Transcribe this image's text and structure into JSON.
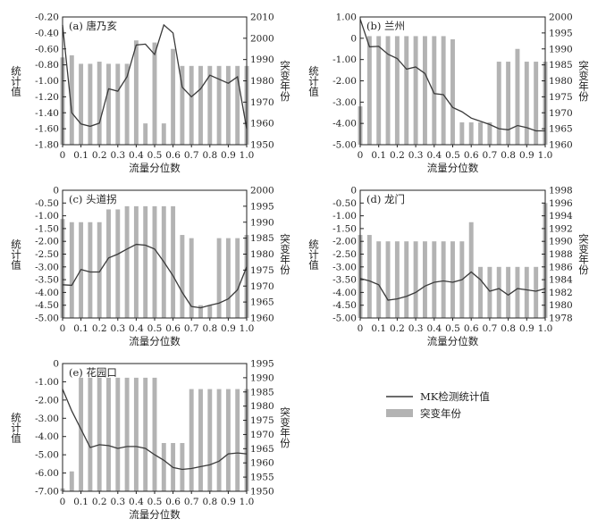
{
  "legend": {
    "line_label": "MK检测统计值",
    "bar_label": "突变年份"
  },
  "colors": {
    "bar": "#b3b3b3",
    "line": "#3a3a3a",
    "axis": "#222222"
  },
  "chart_data": [
    {
      "type": "bar+line",
      "title": "(a) 唐乃亥",
      "xlabel": "流量分位数",
      "ylabel": "统计值",
      "ylabel_right": "突变年份",
      "x_ticks": [
        "0",
        "0.1",
        "0.2",
        "0.3",
        "0.4",
        "0.5",
        "0.6",
        "0.7",
        "0.8",
        "0.9",
        "1.0"
      ],
      "y_ticks": [
        "-0.20",
        "-0.40",
        "-0.60",
        "-0.80",
        "-1.00",
        "-1.20",
        "-1.40",
        "-1.60",
        "-1.80"
      ],
      "y2_ticks": [
        "2010",
        "2000",
        "1990",
        "1980",
        "1970",
        "1960",
        "1950"
      ],
      "ylim": [
        -1.8,
        -0.2
      ],
      "y2lim": [
        1950,
        2010
      ],
      "x": [
        0,
        0.05,
        0.1,
        0.15,
        0.2,
        0.25,
        0.3,
        0.35,
        0.4,
        0.45,
        0.5,
        0.55,
        0.6,
        0.65,
        0.7,
        0.75,
        0.8,
        0.85,
        0.9,
        0.95,
        1.0
      ],
      "line_values": [
        -0.3,
        -1.4,
        -1.54,
        -1.57,
        -1.53,
        -1.1,
        -1.13,
        -0.95,
        -0.55,
        -0.54,
        -0.67,
        -0.3,
        -0.4,
        -1.08,
        -1.2,
        -1.1,
        -0.93,
        -0.98,
        -1.03,
        -0.95,
        -1.6
      ],
      "bar_values": [
        1991,
        1992,
        1988,
        1988,
        1989,
        1988,
        1988,
        1988,
        1999,
        1960,
        1998,
        1960,
        1995,
        1987,
        1987,
        1987,
        1987,
        1987,
        1987,
        1987,
        1987
      ]
    },
    {
      "type": "bar+line",
      "title": "(b) 兰州",
      "xlabel": "流量分位数",
      "ylabel": "统计值",
      "ylabel_right": "突变年份",
      "x_ticks": [
        "0",
        "0.1",
        "0.2",
        "0.3",
        "0.4",
        "0.5",
        "0.6",
        "0.7",
        "0.8",
        "0.9",
        "1.0"
      ],
      "y_ticks": [
        "1.00",
        "0",
        "-1.00",
        "-2.00",
        "-3.00",
        "-4.00",
        "-5.00"
      ],
      "y2_ticks": [
        "2000",
        "1995",
        "1990",
        "1985",
        "1980",
        "1975",
        "1970",
        "1965",
        "1960"
      ],
      "ylim": [
        -5.0,
        1.0
      ],
      "y2lim": [
        1960,
        2000
      ],
      "x": [
        0,
        0.05,
        0.1,
        0.15,
        0.2,
        0.25,
        0.3,
        0.35,
        0.4,
        0.45,
        0.5,
        0.55,
        0.6,
        0.65,
        0.7,
        0.75,
        0.8,
        0.85,
        0.9,
        0.95,
        1.0
      ],
      "line_values": [
        0.9,
        -0.4,
        -0.38,
        -0.75,
        -0.95,
        -1.45,
        -1.35,
        -1.65,
        -2.6,
        -2.65,
        -3.25,
        -3.45,
        -3.75,
        -3.9,
        -4.05,
        -4.25,
        -4.3,
        -4.1,
        -4.2,
        -4.35,
        -4.35
      ],
      "bar_values": [
        1972,
        1994,
        1994,
        1994,
        1994,
        1994,
        1994,
        1994,
        1994,
        1994,
        1993,
        1967,
        1967,
        1967,
        1967,
        1986,
        1986,
        1990,
        1986,
        1986,
        1986
      ]
    },
    {
      "type": "bar+line",
      "title": "(c) 头道拐",
      "xlabel": "流量分位数",
      "ylabel": "统计值",
      "ylabel_right": "突变年份",
      "x_ticks": [
        "0",
        "0.1",
        "0.2",
        "0.3",
        "0.4",
        "0.5",
        "0.6",
        "0.7",
        "0.8",
        "0.9",
        "1.0"
      ],
      "y_ticks": [
        "0",
        "-0.50",
        "-1.00",
        "-1.50",
        "-2.00",
        "-2.50",
        "-3.00",
        "-3.50",
        "-4.00",
        "-4.50",
        "-5.00"
      ],
      "y2_ticks": [
        "2000",
        "1995",
        "1990",
        "1985",
        "1980",
        "1975",
        "1970",
        "1965",
        "1960"
      ],
      "ylim": [
        -5.0,
        0
      ],
      "y2lim": [
        1960,
        2000
      ],
      "x": [
        0,
        0.05,
        0.1,
        0.15,
        0.2,
        0.25,
        0.3,
        0.35,
        0.4,
        0.45,
        0.5,
        0.55,
        0.6,
        0.65,
        0.7,
        0.75,
        0.8,
        0.85,
        0.9,
        0.95,
        1.0
      ],
      "line_values": [
        -3.7,
        -3.72,
        -3.1,
        -3.2,
        -3.2,
        -2.65,
        -2.5,
        -2.3,
        -2.12,
        -2.15,
        -2.3,
        -2.8,
        -3.35,
        -4.0,
        -4.55,
        -4.6,
        -4.5,
        -4.42,
        -4.25,
        -3.9,
        -3.0
      ],
      "bar_values": [
        1991,
        1990,
        1990,
        1990,
        1990,
        1994,
        1994,
        1995,
        1995,
        1995,
        1995,
        1995,
        1995,
        1986,
        1985,
        1964,
        1964,
        1985,
        1985,
        1985,
        1986
      ]
    },
    {
      "type": "bar+line",
      "title": "(d) 龙门",
      "xlabel": "流量分位数",
      "ylabel": "统计值",
      "ylabel_right": "突变年份",
      "x_ticks": [
        "0",
        "0.1",
        "0.2",
        "0.3",
        "0.4",
        "0.5",
        "0.6",
        "0.7",
        "0.8",
        "0.9",
        "1.0"
      ],
      "y_ticks": [
        "0",
        "-0.50",
        "-1.00",
        "-1.50",
        "-2.00",
        "-2.50",
        "-3.00",
        "-3.50",
        "-4.00",
        "-4.50",
        "-5.00"
      ],
      "y2_ticks": [
        "1998",
        "1996",
        "1994",
        "1992",
        "1990",
        "1988",
        "1986",
        "1984",
        "1982",
        "1980",
        "1978"
      ],
      "ylim": [
        -5.0,
        0
      ],
      "y2lim": [
        1978,
        1998
      ],
      "x": [
        0,
        0.05,
        0.1,
        0.15,
        0.2,
        0.25,
        0.3,
        0.35,
        0.4,
        0.45,
        0.5,
        0.55,
        0.6,
        0.65,
        0.7,
        0.75,
        0.8,
        0.85,
        0.9,
        0.95,
        1.0
      ],
      "line_values": [
        -3.45,
        -3.55,
        -3.7,
        -4.3,
        -4.25,
        -4.15,
        -4.0,
        -3.75,
        -3.6,
        -3.55,
        -3.6,
        -3.5,
        -3.2,
        -3.5,
        -3.95,
        -3.85,
        -4.1,
        -3.85,
        -3.9,
        -3.95,
        -3.85
      ],
      "bar_values": [
        1991,
        1991,
        1990,
        1990,
        1990,
        1990,
        1990,
        1990,
        1990,
        1990,
        1990,
        1990,
        1993,
        1986,
        1986,
        1986,
        1986,
        1986,
        1986,
        1986,
        1996
      ]
    },
    {
      "type": "bar+line",
      "title": "(e) 花园口",
      "xlabel": "流量分位数",
      "ylabel": "统计值",
      "ylabel_right": "突变年份",
      "x_ticks": [
        "0",
        "0.1",
        "0.2",
        "0.3",
        "0.4",
        "0.5",
        "0.6",
        "0.7",
        "0.8",
        "0.9",
        "1.0"
      ],
      "y_ticks": [
        "0",
        "-1.00",
        "-2.00",
        "-3.00",
        "-4.00",
        "-5.00",
        "-6.00",
        "-7.00"
      ],
      "y2_ticks": [
        "1995",
        "1990",
        "1985",
        "1980",
        "1975",
        "1970",
        "1965",
        "1960",
        "1955",
        "1950"
      ],
      "ylim": [
        -7.0,
        0
      ],
      "y2lim": [
        1950,
        1995
      ],
      "x": [
        0,
        0.05,
        0.1,
        0.15,
        0.2,
        0.25,
        0.3,
        0.35,
        0.4,
        0.45,
        0.5,
        0.55,
        0.6,
        0.65,
        0.7,
        0.75,
        0.8,
        0.85,
        0.9,
        0.95,
        1.0
      ],
      "line_values": [
        -1.4,
        -2.6,
        -3.6,
        -4.6,
        -4.45,
        -4.5,
        -4.65,
        -4.55,
        -4.55,
        -4.65,
        -5.0,
        -5.3,
        -5.7,
        -5.8,
        -5.75,
        -5.65,
        -5.55,
        -5.35,
        -4.95,
        -4.9,
        -4.95
      ],
      "bar_values": [
        1951,
        1957,
        1990,
        1990,
        1990,
        1990,
        1990,
        1990,
        1990,
        1990,
        1990,
        1967,
        1967,
        1967,
        1986,
        1986,
        1986,
        1986,
        1986,
        1986,
        1986
      ]
    }
  ]
}
